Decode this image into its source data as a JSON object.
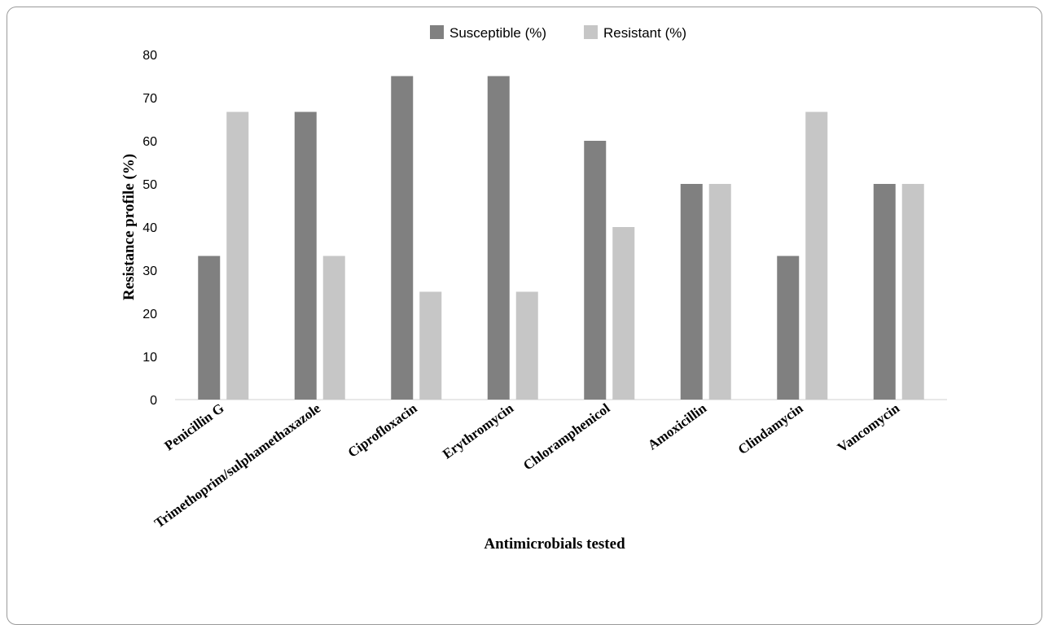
{
  "chart_data": {
    "type": "bar",
    "title": "",
    "xlabel": "Antimicrobials tested",
    "ylabel": "Resistance profile (%)",
    "ylim": [
      0,
      80
    ],
    "yticks": [
      0,
      10,
      20,
      30,
      40,
      50,
      60,
      70,
      80
    ],
    "grid": false,
    "legend_position": "top",
    "categories": [
      "Penicillin G",
      "Trimethoprim/sulphamethaxazole",
      "Ciprofloxacin",
      "Erythromycin",
      "Chloramphenicol",
      "Amoxicillin",
      "Clindamycin",
      "Vancomycin"
    ],
    "series": [
      {
        "name": "Susceptible (%)",
        "color": "#808080",
        "values": [
          33.3,
          66.7,
          75,
          75,
          60,
          50,
          33.3,
          50
        ]
      },
      {
        "name": "Resistant (%)",
        "color": "#c6c6c6",
        "values": [
          66.7,
          33.3,
          25,
          25,
          40,
          50,
          66.7,
          50
        ]
      }
    ]
  }
}
